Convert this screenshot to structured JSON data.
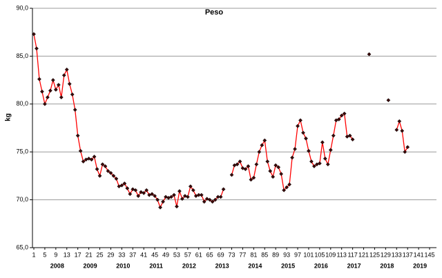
{
  "chart_data": {
    "type": "line",
    "title": "Peso",
    "y_label": "kg",
    "categories": [
      1,
      null,
      null,
      null,
      5,
      null,
      null,
      null,
      9,
      null,
      null,
      null,
      13,
      null,
      null,
      null,
      17,
      null,
      null,
      null,
      21,
      null,
      null,
      null,
      25,
      null,
      null,
      null,
      29,
      null,
      null,
      null,
      33,
      null,
      null,
      null,
      37,
      null,
      null,
      null,
      41,
      null,
      null,
      null,
      45,
      null,
      null,
      null,
      49,
      null,
      null,
      null,
      53,
      null,
      null,
      null,
      57,
      null,
      null,
      null,
      61,
      null,
      null,
      null,
      65,
      null,
      null,
      null,
      69,
      null,
      null,
      null,
      73,
      null,
      null,
      null,
      77,
      null,
      null,
      null,
      81,
      null,
      null,
      null,
      85,
      null,
      null,
      null,
      89,
      null,
      null,
      null,
      93,
      null,
      null,
      null,
      97,
      null,
      null,
      null,
      101,
      null,
      null,
      null,
      105,
      null,
      null,
      null,
      109,
      null,
      null,
      null,
      113,
      null,
      null,
      null,
      117,
      null,
      null,
      null,
      121,
      null,
      null,
      null,
      125,
      null,
      null,
      null,
      129,
      null,
      null,
      null,
      133,
      null,
      null,
      null,
      137,
      null,
      null,
      null,
      141,
      null,
      null,
      null,
      145,
      null,
      null
    ],
    "x_group_labels": [
      "2008",
      "2009",
      "2010",
      "2011",
      "2012",
      "2013",
      "2014",
      "2015",
      "2016",
      "2017",
      "2018",
      "2019"
    ],
    "series": [
      {
        "name": "Peso",
        "color": "#ff0000",
        "marker_color": "#3a0a0a",
        "values": [
          87.3,
          85.8,
          82.6,
          81.3,
          80.0,
          80.7,
          81.4,
          82.5,
          81.5,
          82.0,
          80.7,
          83.0,
          83.6,
          82.1,
          81.0,
          79.4,
          76.7,
          75.1,
          74.0,
          74.2,
          74.3,
          74.2,
          74.5,
          73.2,
          72.5,
          73.7,
          73.5,
          73.0,
          72.8,
          72.5,
          72.2,
          71.4,
          71.5,
          71.7,
          71.2,
          70.6,
          71.1,
          71.0,
          70.4,
          70.8,
          70.7,
          71.0,
          70.5,
          70.6,
          70.4,
          70.0,
          69.2,
          69.8,
          70.3,
          70.2,
          70.3,
          70.5,
          69.3,
          70.9,
          70.1,
          70.4,
          70.3,
          71.4,
          71.0,
          70.4,
          70.5,
          70.5,
          69.8,
          70.1,
          70.0,
          69.8,
          70.0,
          70.3,
          70.3,
          71.1,
          null,
          null,
          72.6,
          73.6,
          73.7,
          74.0,
          73.3,
          73.2,
          73.5,
          72.1,
          72.3,
          73.7,
          75.0,
          75.7,
          76.2,
          74.0,
          73.0,
          72.4,
          73.6,
          73.4,
          72.7,
          71.0,
          71.3,
          71.6,
          74.4,
          75.3,
          77.7,
          78.3,
          77.0,
          76.4,
          75.1,
          74.0,
          73.5,
          73.7,
          73.8,
          76.0,
          74.3,
          73.7,
          75.2,
          76.7,
          78.3,
          78.4,
          78.8,
          79.0,
          76.6,
          76.7,
          76.3,
          null,
          null,
          null,
          null,
          null,
          85.2,
          null,
          null,
          null,
          null,
          null,
          null,
          80.4,
          null,
          null,
          77.3,
          78.2,
          77.2,
          75.0,
          75.5,
          null,
          null,
          null,
          null,
          null,
          null,
          null,
          null,
          null,
          null
        ]
      }
    ],
    "ylim": [
      65,
      90
    ],
    "yticks": [
      {
        "value": 65,
        "label": "65,0"
      },
      {
        "value": 70,
        "label": "70,0"
      },
      {
        "value": 75,
        "label": "75,0"
      },
      {
        "value": 80,
        "label": "80,0"
      },
      {
        "value": 85,
        "label": "85,0"
      },
      {
        "value": 90,
        "label": "90,0"
      }
    ],
    "grid": true
  }
}
